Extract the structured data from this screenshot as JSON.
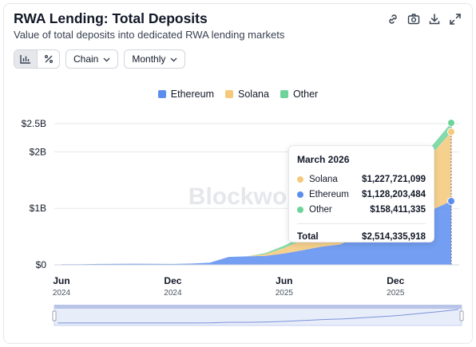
{
  "header": {
    "title": "RWA Lending: Total Deposits",
    "subtitle": "Value of total deposits into dedicated RWA lending markets"
  },
  "toolbar": {
    "icons": [
      "link-icon",
      "camera-icon",
      "download-icon",
      "expand-icon"
    ]
  },
  "controls": {
    "chart_mode_icons": [
      "bar-chart-icon",
      "percent-icon"
    ],
    "chain_label": "Chain",
    "period_label": "Monthly"
  },
  "colors": {
    "ethereum": "#5b8def",
    "solana": "#f5c97a",
    "other": "#6dd39b"
  },
  "watermark": "Blockworks",
  "tooltip": {
    "title": "March 2026",
    "rows": [
      {
        "name": "Solana",
        "value": "$1,227,721,099",
        "color": "#f5c97a"
      },
      {
        "name": "Ethereum",
        "value": "$1,128,203,484",
        "color": "#5b8def"
      },
      {
        "name": "Other",
        "value": "$158,411,335",
        "color": "#6dd39b"
      }
    ],
    "total_label": "Total",
    "total_value": "$2,514,335,918"
  },
  "chart_data": {
    "type": "area",
    "stacked": true,
    "title": "RWA Lending: Total Deposits",
    "subtitle": "Value of total deposits into dedicated RWA lending markets",
    "x": [
      "2024-06",
      "2024-07",
      "2024-08",
      "2024-09",
      "2024-10",
      "2024-11",
      "2024-12",
      "2025-01",
      "2025-02",
      "2025-03",
      "2025-04",
      "2025-05",
      "2025-06",
      "2025-07",
      "2025-08",
      "2025-09",
      "2025-10",
      "2025-11",
      "2025-12",
      "2026-01",
      "2026-02",
      "2026-03"
    ],
    "x_ticks": [
      {
        "x": "2024-06",
        "label": "Jun",
        "year": "2024"
      },
      {
        "x": "2024-12",
        "label": "Dec",
        "year": "2024"
      },
      {
        "x": "2025-06",
        "label": "Jun",
        "year": "2025"
      },
      {
        "x": "2025-12",
        "label": "Dec",
        "year": "2025"
      }
    ],
    "y_ticks": [
      {
        "v": 0,
        "label": "$0"
      },
      {
        "v": 1000000000,
        "label": "$1B"
      },
      {
        "v": 2000000000,
        "label": "$2B"
      },
      {
        "v": 2500000000,
        "label": "$2.5B"
      }
    ],
    "ylim": [
      0,
      2500000000
    ],
    "legend": [
      "Ethereum",
      "Solana",
      "Other"
    ],
    "legend_position": "top-center",
    "series": [
      {
        "name": "Ethereum",
        "color": "#5b8def",
        "values": [
          10000000,
          12000000,
          15000000,
          18000000,
          20000000,
          18000000,
          15000000,
          22000000,
          40000000,
          140000000,
          150000000,
          160000000,
          200000000,
          260000000,
          320000000,
          360000000,
          500000000,
          600000000,
          720000000,
          850000000,
          980000000,
          1128203484
        ]
      },
      {
        "name": "Solana",
        "color": "#f5c97a",
        "values": [
          0,
          0,
          0,
          0,
          0,
          0,
          0,
          0,
          0,
          0,
          0,
          30000000,
          100000000,
          180000000,
          260000000,
          320000000,
          380000000,
          480000000,
          600000000,
          800000000,
          1000000000,
          1227721099
        ]
      },
      {
        "name": "Other",
        "color": "#6dd39b",
        "values": [
          0,
          0,
          0,
          0,
          0,
          0,
          0,
          0,
          0,
          0,
          0,
          20000000,
          40000000,
          60000000,
          80000000,
          90000000,
          100000000,
          110000000,
          120000000,
          130000000,
          145000000,
          158411335
        ]
      }
    ],
    "grid": true
  }
}
